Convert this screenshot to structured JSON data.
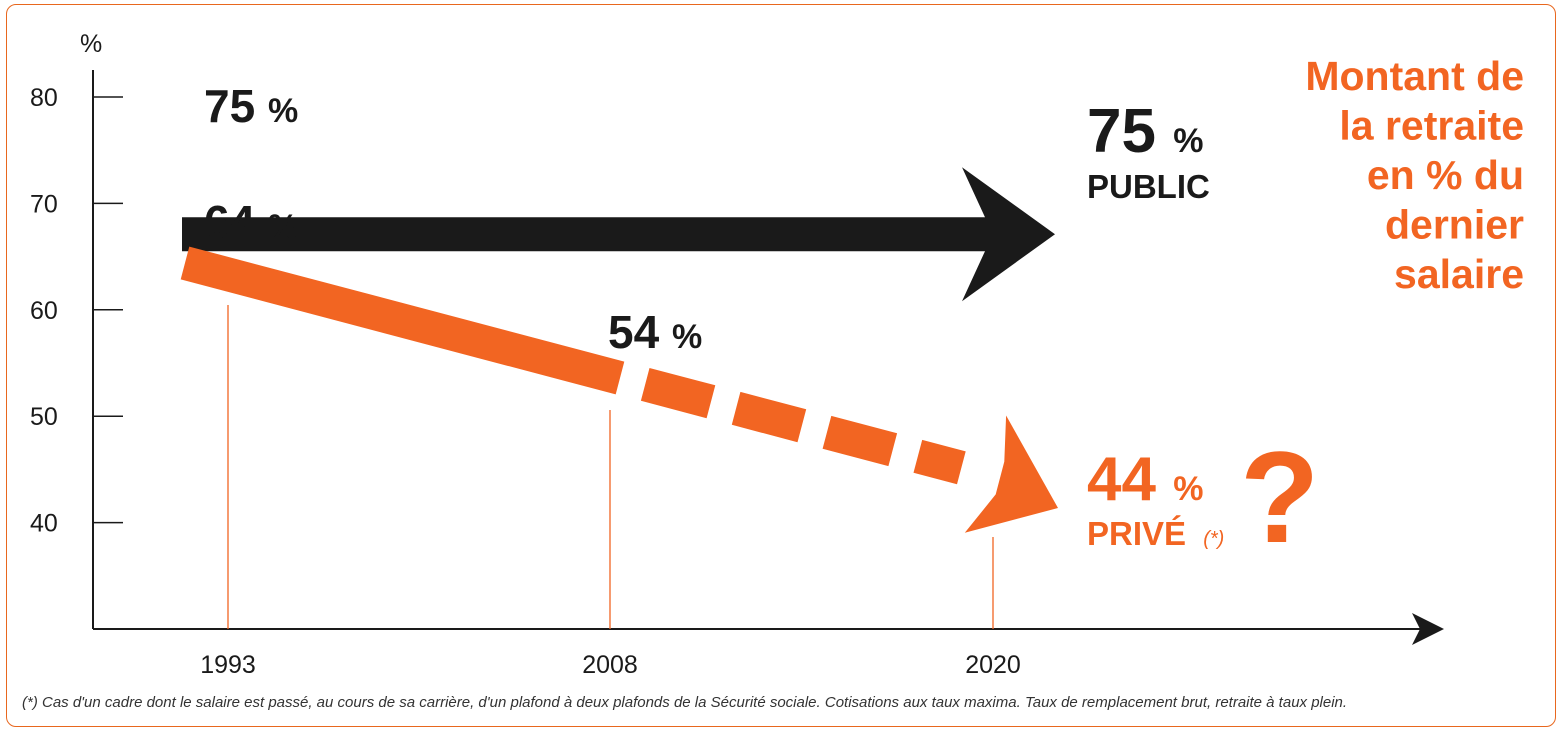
{
  "chart_data": {
    "type": "line",
    "title_lines": [
      "Montant de",
      "la retraite",
      "en % du",
      "dernier",
      "salaire"
    ],
    "ylabel": "%",
    "ylim": [
      30,
      80
    ],
    "yticks": [
      "40",
      "50",
      "60",
      "70",
      "80"
    ],
    "x_ticks": [
      "1993",
      "2008",
      "2020"
    ],
    "series": [
      {
        "name": "PUBLIC",
        "color": "#1a1a1a",
        "x": [
          1993,
          2020
        ],
        "values": [
          75,
          75
        ],
        "start_label": "75 %",
        "end_label": "75 %"
      },
      {
        "name": "PRIVÉ",
        "name_note": "(*)",
        "color": "#f26522",
        "x": [
          1993,
          2008,
          2020
        ],
        "values": [
          64,
          54,
          44
        ],
        "labels": [
          "64 %",
          "54 %",
          "44 %"
        ],
        "projected_from": 2008,
        "end_mark": "?"
      }
    ],
    "footnote": "(*) Cas d'un cadre dont le salaire est passé, au cours de sa carrière, d'un plafond à deux plafonds de la Sécurité sociale. Cotisations aux taux maxima. Taux de remplacement brut, retraite à taux plein."
  }
}
